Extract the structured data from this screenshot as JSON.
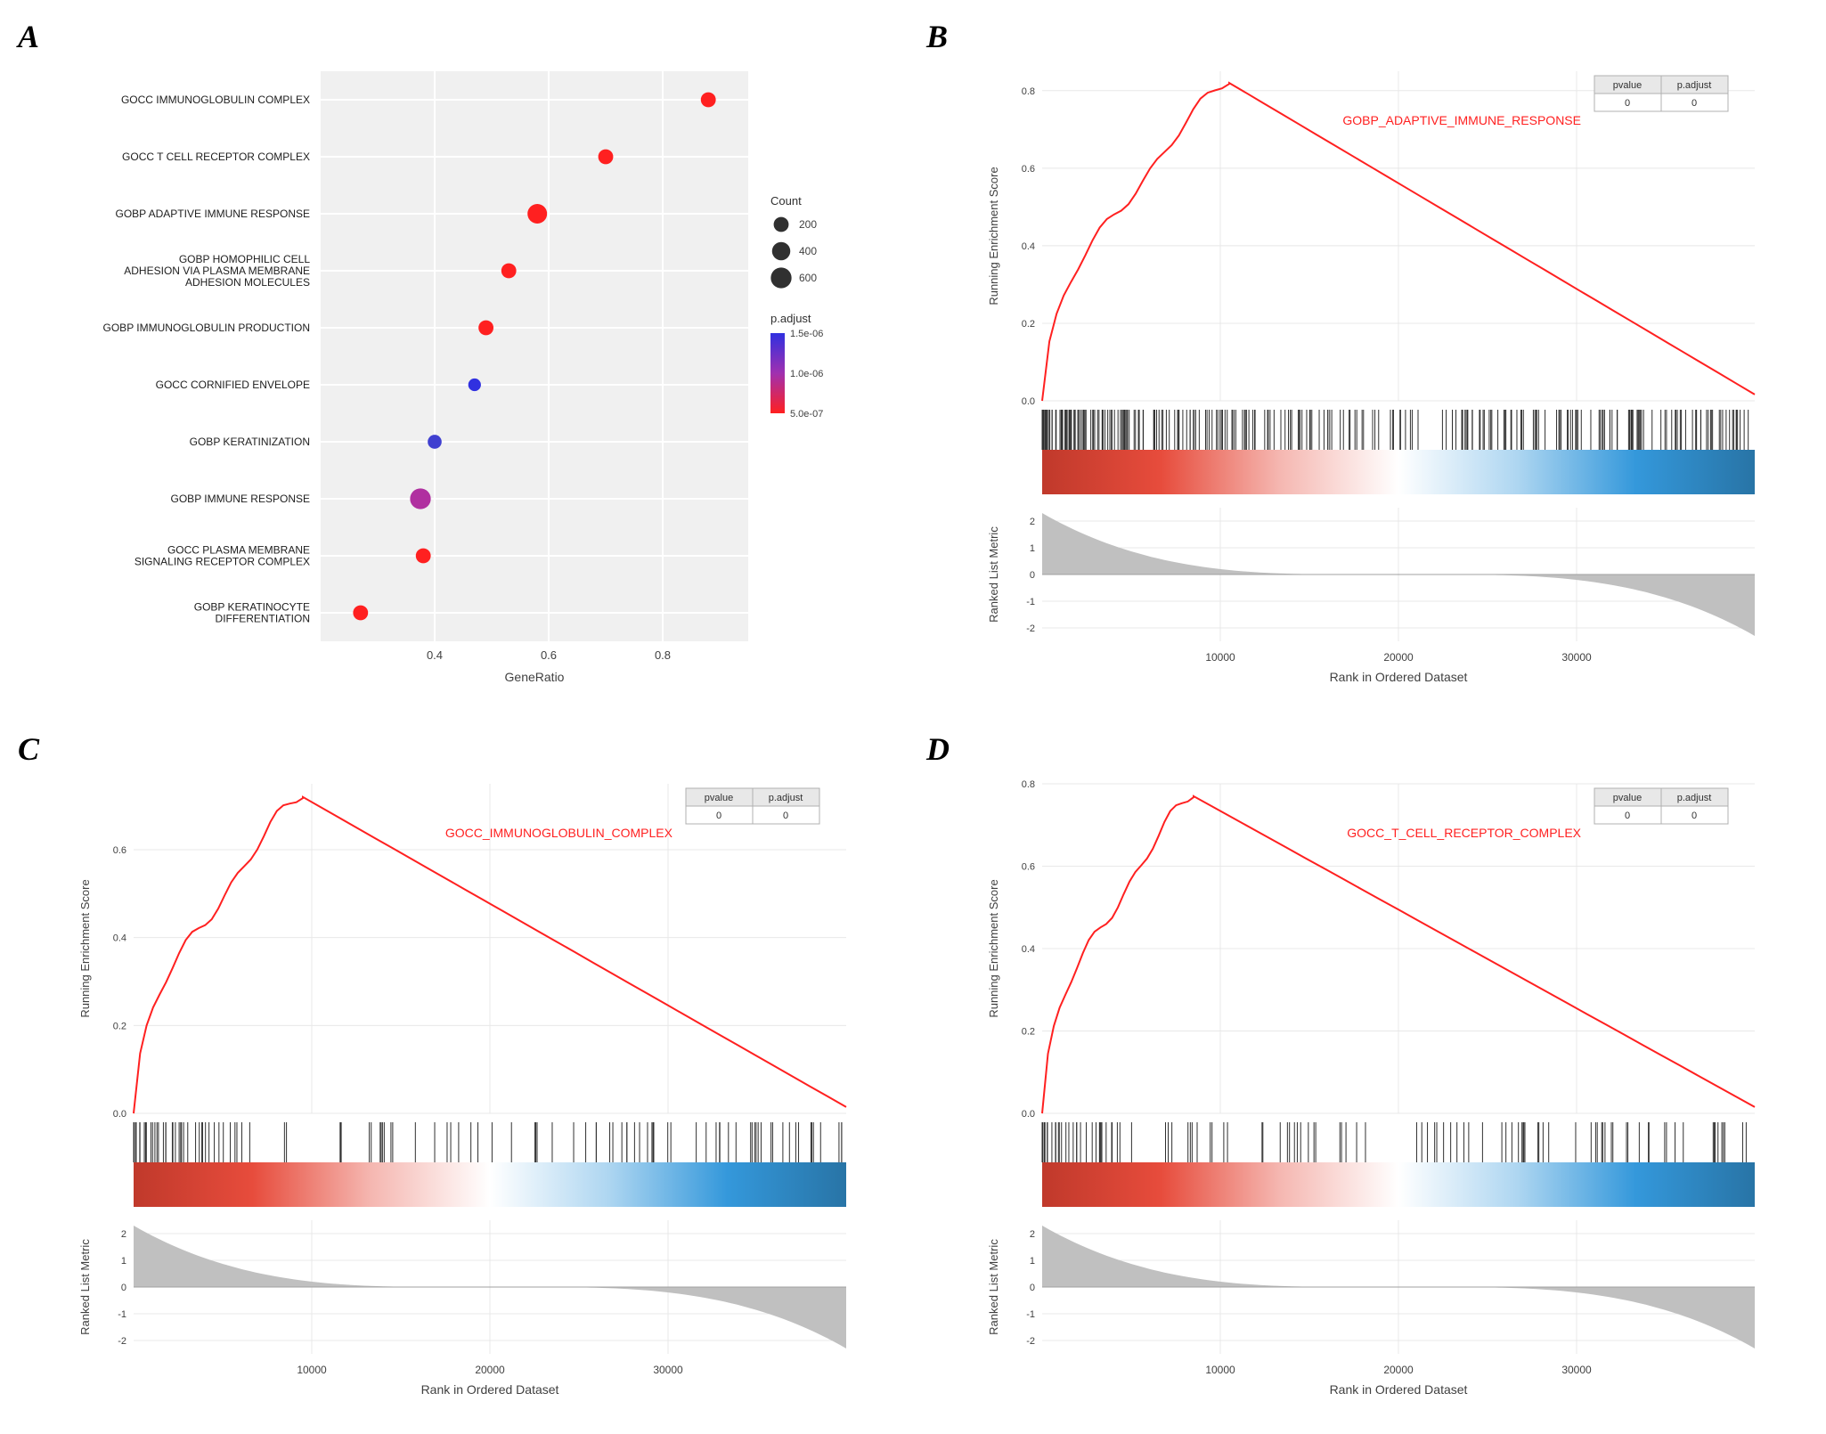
{
  "panelA": {
    "label": "A",
    "type": "dot-plot",
    "xlabel": "GeneRatio",
    "xlim": [
      0.2,
      0.95
    ],
    "xticks": [
      0.4,
      0.6,
      0.8
    ],
    "background_color": "#f0f0f0",
    "grid_color": "#ffffff",
    "point_stroke": "none",
    "terms": [
      {
        "label": "GOCC IMMUNOGLOBULIN COMPLEX",
        "x": 0.88,
        "count": 200,
        "color": "#ff2020"
      },
      {
        "label": "GOCC T CELL RECEPTOR COMPLEX",
        "x": 0.7,
        "count": 200,
        "color": "#ff2020"
      },
      {
        "label": "GOBP ADAPTIVE IMMUNE RESPONSE",
        "x": 0.58,
        "count": 500,
        "color": "#ff2020"
      },
      {
        "label": "GOBP HOMOPHILIC CELL\nADHESION VIA PLASMA MEMBRANE\nADHESION MOLECULES",
        "x": 0.53,
        "count": 200,
        "color": "#ff2020"
      },
      {
        "label": "GOBP IMMUNOGLOBULIN PRODUCTION",
        "x": 0.49,
        "count": 200,
        "color": "#ff2020"
      },
      {
        "label": "GOCC CORNIFIED ENVELOPE",
        "x": 0.47,
        "count": 100,
        "color": "#3030e0"
      },
      {
        "label": "GOBP KERATINIZATION",
        "x": 0.4,
        "count": 150,
        "color": "#4040d0"
      },
      {
        "label": "GOBP IMMUNE RESPONSE",
        "x": 0.375,
        "count": 600,
        "color": "#b030a0"
      },
      {
        "label": "GOCC PLASMA MEMBRANE\nSIGNALING RECEPTOR COMPLEX",
        "x": 0.38,
        "count": 200,
        "color": "#ff2020"
      },
      {
        "label": "GOBP KERATINOCYTE\nDIFFERENTIATION",
        "x": 0.27,
        "count": 200,
        "color": "#ff2020"
      }
    ],
    "legend": {
      "count_title": "Count",
      "count_items": [
        {
          "label": "200",
          "size": 200
        },
        {
          "label": "400",
          "size": 400
        },
        {
          "label": "600",
          "size": 600
        }
      ],
      "color_title": "p.adjust",
      "color_gradient": [
        "#3030e0",
        "#a030b0",
        "#ff2020"
      ],
      "color_labels": [
        "1.5e-06",
        "1.0e-06",
        "5.0e-07"
      ]
    }
  },
  "gsea_common": {
    "xlabel": "Rank in Ordered Dataset",
    "xlim": [
      0,
      40000
    ],
    "xticks": [
      10000,
      20000,
      30000
    ],
    "es_ylabel": "Running Enrichment Score",
    "rank_ylabel": "Ranked List Metric",
    "line_color": "#ff2020",
    "heatmap_colors": [
      "#c0392b",
      "#e74c3c",
      "#f5b7b1",
      "#ffffff",
      "#aed6f1",
      "#3498db",
      "#2874a6"
    ],
    "tick_fill": "#c0c0c0",
    "bar_color": "#303030",
    "grid_color": "#e8e8e8",
    "stat_header": [
      "pvalue",
      "p.adjust"
    ],
    "stat_values": [
      "0",
      "0"
    ]
  },
  "panelB": {
    "label": "B",
    "type": "gsea",
    "title": "GOBP_ADAPTIVE_IMMUNE_RESPONSE",
    "es_ylim": [
      0.0,
      0.85
    ],
    "es_yticks": [
      0.0,
      0.2,
      0.4,
      0.6,
      0.8
    ],
    "rank_ylim": [
      -2.5,
      2.5
    ],
    "rank_yticks": [
      -2,
      -1,
      0,
      1,
      2
    ],
    "peak_x": 10500,
    "peak_y": 0.82,
    "tick_density": "dense"
  },
  "panelC": {
    "label": "C",
    "type": "gsea",
    "title": "GOCC_IMMUNOGLOBULIN_COMPLEX",
    "es_ylim": [
      0.0,
      0.75
    ],
    "es_yticks": [
      0.0,
      0.2,
      0.4,
      0.6
    ],
    "rank_ylim": [
      -2.5,
      2.5
    ],
    "rank_yticks": [
      -2,
      -1,
      0,
      1,
      2
    ],
    "peak_x": 9500,
    "peak_y": 0.72,
    "tick_density": "sparse"
  },
  "panelD": {
    "label": "D",
    "type": "gsea",
    "title": "GOCC_T_CELL_RECEPTOR_COMPLEX",
    "es_ylim": [
      0.0,
      0.8
    ],
    "es_yticks": [
      0.0,
      0.2,
      0.4,
      0.6,
      0.8
    ],
    "rank_ylim": [
      -2.5,
      2.5
    ],
    "rank_yticks": [
      -2,
      -1,
      0,
      1,
      2
    ],
    "peak_x": 8500,
    "peak_y": 0.77,
    "tick_density": "sparse"
  }
}
